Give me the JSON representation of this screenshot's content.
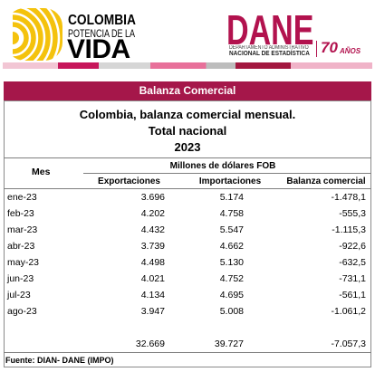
{
  "header": {
    "colombia_logo": {
      "line1": "COLOMBIA",
      "line2": "POTENCIA DE LA",
      "line3": "VIDA"
    },
    "dane_logo": {
      "name": "DANE",
      "line1": "DEPARTAMENTO ADMINISTRATIVO",
      "line2": "NACIONAL DE ESTADÍSTICA",
      "anniversary_number": "70",
      "anniversary_word": "AÑOS"
    }
  },
  "section_title": "Balanza Comercial",
  "table": {
    "title": "Colombia, balanza comercial mensual.",
    "subtitle": "Total nacional",
    "year": "2023",
    "col_mes": "Mes",
    "unit_header": "Millones de dólares FOB",
    "columns": [
      "Exportaciones",
      "Importaciones",
      "Balanza comercial"
    ],
    "rows": [
      {
        "mes": "ene-23",
        "exportaciones": "3.696",
        "importaciones": "5.174",
        "balanza": "-1.478,1"
      },
      {
        "mes": "feb-23",
        "exportaciones": "4.202",
        "importaciones": "4.758",
        "balanza": "-555,3"
      },
      {
        "mes": "mar-23",
        "exportaciones": "4.432",
        "importaciones": "5.547",
        "balanza": "-1.115,3"
      },
      {
        "mes": "abr-23",
        "exportaciones": "3.739",
        "importaciones": "4.662",
        "balanza": "-922,6"
      },
      {
        "mes": "may-23",
        "exportaciones": "4.498",
        "importaciones": "5.130",
        "balanza": "-632,5"
      },
      {
        "mes": "jun-23",
        "exportaciones": "4.021",
        "importaciones": "4.752",
        "balanza": "-731,1"
      },
      {
        "mes": "jul-23",
        "exportaciones": "4.134",
        "importaciones": "4.695",
        "balanza": "-561,1"
      },
      {
        "mes": "ago-23",
        "exportaciones": "3.947",
        "importaciones": "5.008",
        "balanza": "-1.061,2"
      }
    ],
    "totals": {
      "exportaciones": "32.669",
      "importaciones": "39.727",
      "balanza": "-7.057,3"
    }
  },
  "footer": {
    "source": "Fuente: DIAN- DANE (IMPO)"
  },
  "colors": {
    "dane_crimson": "#b2124e",
    "title_bar": "#a5174a",
    "logo_yellow": "#f4c20d"
  }
}
